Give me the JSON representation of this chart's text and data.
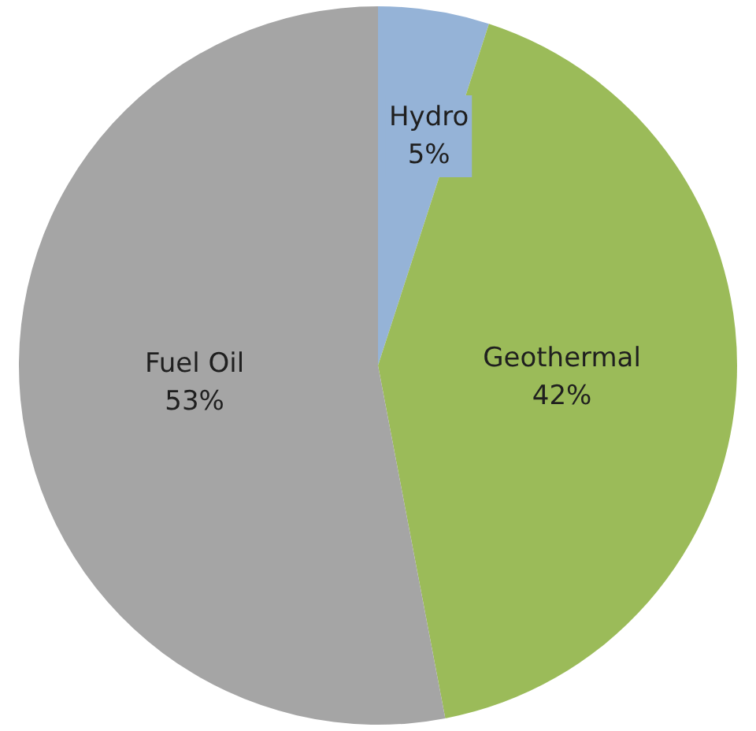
{
  "chart_data": {
    "type": "pie",
    "categories": [
      "Hydro",
      "Geothermal",
      "Fuel Oil"
    ],
    "values": [
      5,
      42,
      53
    ],
    "colors": [
      "#95b3d7",
      "#9bbb59",
      "#a5a5a5"
    ],
    "value_labels": [
      "5%",
      "42%",
      "53%"
    ],
    "legend": false
  }
}
